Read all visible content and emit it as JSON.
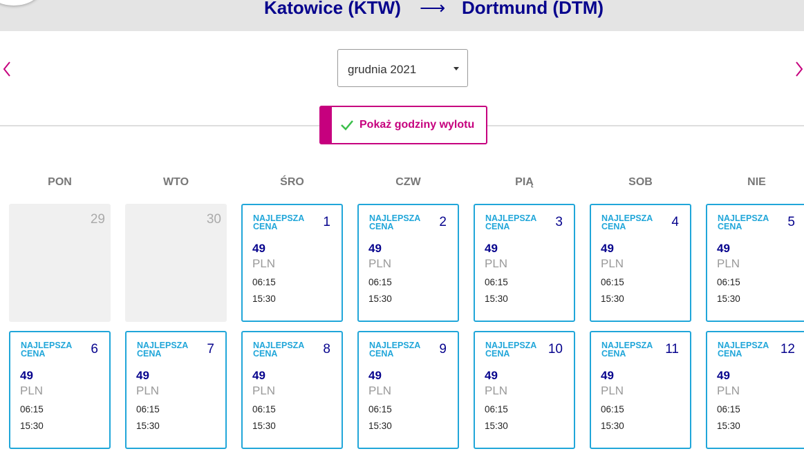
{
  "header": {
    "origin": "Katowice (KTW)",
    "arrow": "⟶",
    "destination": "Dortmund (DTM)"
  },
  "month_select": "grudnia 2021",
  "toggle": "Pokaż godziny wylotu",
  "weekdays": [
    "PON",
    "WTO",
    "ŚRO",
    "CZW",
    "PIĄ",
    "SOB",
    "NIE"
  ],
  "calendar": {
    "rows": [
      [
        {
          "day": 29
        },
        {
          "day": 30
        },
        {
          "day": 1,
          "badge": "NAJLEPSZA CENA",
          "price": 49,
          "currency": "PLN",
          "times": [
            "06:15",
            "15:30"
          ]
        },
        {
          "day": 2,
          "badge": "NAJLEPSZA CENA",
          "price": 49,
          "currency": "PLN",
          "times": [
            "06:15",
            "15:30"
          ]
        },
        {
          "day": 3,
          "badge": "NAJLEPSZA CENA",
          "price": 49,
          "currency": "PLN",
          "times": [
            "06:15",
            "15:30"
          ]
        },
        {
          "day": 4,
          "badge": "NAJLEPSZA CENA",
          "price": 49,
          "currency": "PLN",
          "times": [
            "06:15",
            "15:30"
          ]
        },
        {
          "day": 5,
          "badge": "NAJLEPSZA CENA",
          "price": 49,
          "currency": "PLN",
          "times": [
            "06:15",
            "15:30"
          ]
        }
      ],
      [
        {
          "day": 6,
          "badge": "NAJLEPSZA CENA",
          "price": 49,
          "currency": "PLN",
          "times": [
            "06:15",
            "15:30"
          ]
        },
        {
          "day": 7,
          "badge": "NAJLEPSZA CENA",
          "price": 49,
          "currency": "PLN",
          "times": [
            "06:15",
            "15:30"
          ]
        },
        {
          "day": 8,
          "badge": "NAJLEPSZA CENA",
          "price": 49,
          "currency": "PLN",
          "times": [
            "06:15",
            "15:30"
          ]
        },
        {
          "day": 9,
          "badge": "NAJLEPSZA CENA",
          "price": 49,
          "currency": "PLN",
          "times": [
            "06:15",
            "15:30"
          ]
        },
        {
          "day": 10,
          "badge": "NAJLEPSZA CENA",
          "price": 49,
          "currency": "PLN",
          "times": [
            "06:15",
            "15:30"
          ]
        },
        {
          "day": 11,
          "badge": "NAJLEPSZA CENA",
          "price": 49,
          "currency": "PLN",
          "times": [
            "06:15",
            "15:30"
          ]
        },
        {
          "day": 12,
          "badge": "NAJLEPSZA CENA",
          "price": 49,
          "currency": "PLN",
          "times": [
            "06:15",
            "15:30"
          ]
        }
      ]
    ]
  }
}
